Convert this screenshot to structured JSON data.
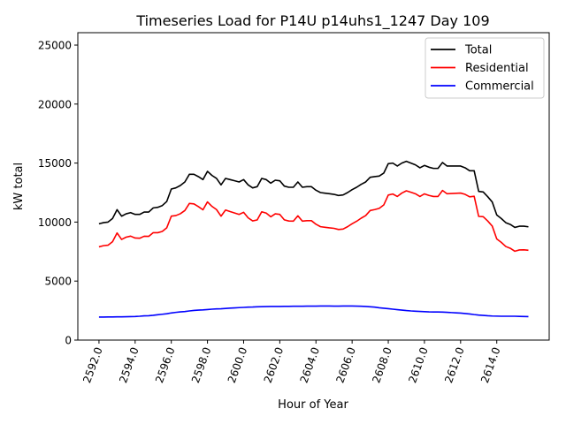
{
  "chart_data": {
    "type": "line",
    "title": "Timeseries Load for P14U p14uhs1_1247  Day 109",
    "xlabel": "Hour of Year",
    "ylabel": "kW total",
    "xlim": [
      2590.83,
      2616.9
    ],
    "ylim": [
      0,
      26050
    ],
    "xticks": [
      2592,
      2594,
      2596,
      2598,
      2600,
      2602,
      2604,
      2606,
      2608,
      2610,
      2612,
      2614
    ],
    "xtick_labels": [
      "2592.0",
      "2594.0",
      "2596.0",
      "2598.0",
      "2600.0",
      "2602.0",
      "2604.0",
      "2606.0",
      "2608.0",
      "2610.0",
      "2612.0",
      "2614.0"
    ],
    "yticks": [
      0,
      5000,
      10000,
      15000,
      20000,
      25000
    ],
    "ytick_labels": [
      "0",
      "5000",
      "10000",
      "15000",
      "20000",
      "25000"
    ],
    "grid": false,
    "legend_position": "top-right",
    "x_start": 2592,
    "x_step": 0.25,
    "series": [
      {
        "name": "Total",
        "color": "#000000",
        "values": [
          9850,
          9950,
          10000,
          10300,
          11050,
          10500,
          10700,
          10800,
          10650,
          10650,
          10850,
          10850,
          11200,
          11250,
          11400,
          11750,
          12800,
          12900,
          13100,
          13400,
          14050,
          14050,
          13850,
          13600,
          14300,
          13950,
          13700,
          13150,
          13700,
          13600,
          13500,
          13400,
          13600,
          13150,
          12900,
          13000,
          13700,
          13600,
          13300,
          13550,
          13500,
          13050,
          12950,
          12950,
          13400,
          12950,
          13000,
          13000,
          12700,
          12500,
          12450,
          12400,
          12350,
          12250,
          12300,
          12500,
          12750,
          12950,
          13200,
          13400,
          13800,
          13850,
          13900,
          14150,
          14950,
          15000,
          14750,
          15000,
          15150,
          15000,
          14850,
          14600,
          14800,
          14650,
          14550,
          14550,
          15050,
          14750,
          14750,
          14750,
          14750,
          14600,
          14350,
          14350,
          12600,
          12550,
          12150,
          11700,
          10600,
          10300,
          9950,
          9800,
          9550,
          9650,
          9650,
          9600
        ]
      },
      {
        "name": "Residential",
        "color": "#ff0000",
        "values": [
          7900,
          8000,
          8040,
          8340,
          9080,
          8530,
          8720,
          8810,
          8650,
          8630,
          8800,
          8790,
          9100,
          9100,
          9210,
          9520,
          10500,
          10550,
          10710,
          10980,
          11580,
          11540,
          11310,
          11040,
          11710,
          11330,
          11060,
          10500,
          11020,
          10890,
          10770,
          10650,
          10830,
          10360,
          10100,
          10180,
          10870,
          10760,
          10450,
          10700,
          10650,
          10190,
          10090,
          10080,
          10530,
          10080,
          10120,
          10120,
          9820,
          9610,
          9560,
          9510,
          9470,
          9370,
          9410,
          9610,
          9860,
          10070,
          10330,
          10550,
          10980,
          11060,
          11160,
          11450,
          12290,
          12380,
          12170,
          12460,
          12650,
          12530,
          12400,
          12170,
          12390,
          12260,
          12170,
          12170,
          12680,
          12400,
          12420,
          12440,
          12460,
          12350,
          12140,
          12190,
          10480,
          10460,
          10090,
          9660,
          8570,
          8280,
          7930,
          7780,
          7530,
          7640,
          7650,
          7610
        ]
      },
      {
        "name": "Commercial",
        "color": "#0000ff",
        "values": [
          1950,
          1950,
          1960,
          1960,
          1970,
          1970,
          1980,
          1990,
          2000,
          2020,
          2050,
          2060,
          2100,
          2150,
          2190,
          2230,
          2300,
          2350,
          2390,
          2420,
          2470,
          2510,
          2540,
          2560,
          2590,
          2620,
          2640,
          2650,
          2680,
          2710,
          2730,
          2750,
          2770,
          2790,
          2800,
          2820,
          2830,
          2840,
          2850,
          2850,
          2850,
          2860,
          2860,
          2870,
          2870,
          2870,
          2880,
          2880,
          2880,
          2890,
          2890,
          2890,
          2880,
          2880,
          2890,
          2890,
          2890,
          2880,
          2870,
          2850,
          2820,
          2790,
          2740,
          2700,
          2660,
          2620,
          2580,
          2540,
          2500,
          2470,
          2450,
          2430,
          2410,
          2390,
          2380,
          2380,
          2370,
          2350,
          2330,
          2310,
          2290,
          2250,
          2210,
          2160,
          2120,
          2090,
          2060,
          2040,
          2030,
          2020,
          2020,
          2020,
          2020,
          2010,
          2000,
          1990
        ]
      }
    ]
  }
}
